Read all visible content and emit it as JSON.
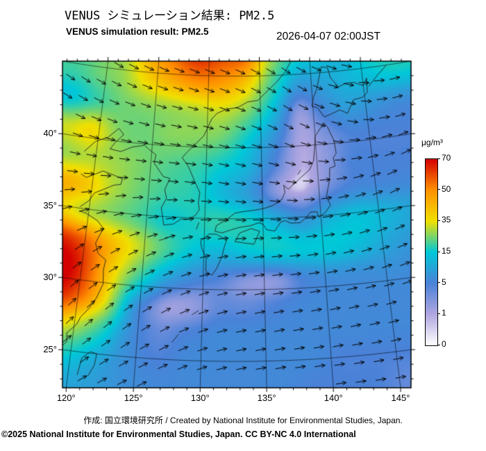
{
  "header": {
    "title_jp": "VENUS シミュレーション結果: PM2.5",
    "title_en": "VENUS simulation result: PM2.5",
    "timestamp": "2026-04-07 02:00JST"
  },
  "footer": {
    "credit": "作成: 国立環境研究所 / Created by National Institute for Environmental Studies, Japan.",
    "copyright": "©2025 National Institute for Environmental Studies, Japan. CC BY-NC 4.0 International"
  },
  "colorbar": {
    "unit": "μg/m³",
    "ticks": [
      "70",
      "50",
      "35",
      "15",
      "5",
      "1",
      "0"
    ]
  },
  "chart_data": {
    "type": "heatmap",
    "title": "VENUS シミュレーション結果: PM2.5",
    "subtitle": "VENUS simulation result: PM2.5",
    "timestamp": "2026-04-07 02:00JST",
    "variable": "PM2.5",
    "unit": "μg/m³",
    "projection": {
      "type": "lambert_conformal_conic",
      "std_parallels": [
        30,
        40
      ],
      "center_lon": 132.75,
      "center_lat": 34.6
    },
    "lon_axis": {
      "tick_values": [
        120,
        125,
        130,
        135,
        140,
        145
      ],
      "tick_labels": [
        "120°",
        "125°",
        "130°",
        "135°",
        "140°",
        "145°"
      ]
    },
    "lat_axis": {
      "tick_values": [
        45,
        40,
        35,
        30,
        25
      ],
      "tick_labels": [
        "45°",
        "40°",
        "35°",
        "30°",
        "25°"
      ]
    },
    "scale": {
      "levels": [
        0,
        1,
        5,
        15,
        35,
        50,
        70
      ],
      "colors": [
        "#ffffff",
        "#b0a6e0",
        "#4a82d8",
        "#00c8d8",
        "#f0e000",
        "#ff9000",
        "#d40000"
      ]
    },
    "grid": {
      "lons": [
        117.0,
        119.38,
        121.77,
        124.15,
        126.54,
        128.92,
        131.31,
        133.69,
        136.08,
        138.46,
        140.85,
        143.23,
        145.62,
        148.0
      ],
      "lats": [
        46.5,
        44.54,
        42.58,
        40.63,
        38.67,
        36.71,
        34.75,
        32.79,
        30.83,
        28.88,
        26.92,
        24.96,
        23.0
      ],
      "values": [
        [
          22,
          25,
          30,
          45,
          55,
          65,
          60,
          55,
          30,
          18,
          15,
          12,
          18,
          20
        ],
        [
          20,
          24,
          28,
          38,
          45,
          50,
          48,
          40,
          22,
          10,
          10,
          12,
          14,
          16
        ],
        [
          15,
          20,
          24,
          26,
          28,
          30,
          32,
          26,
          14,
          3,
          6,
          9,
          8,
          7
        ],
        [
          32,
          36,
          26,
          24,
          26,
          26,
          24,
          16,
          8,
          1.5,
          3,
          5,
          5,
          5
        ],
        [
          28,
          30,
          28,
          25,
          22,
          20,
          16,
          12,
          5,
          1,
          2.5,
          5,
          5,
          5
        ],
        [
          45,
          40,
          30,
          24,
          20,
          18,
          13,
          9,
          3,
          1,
          4,
          6,
          6,
          6
        ],
        [
          40,
          32,
          27,
          22,
          16,
          17,
          19,
          17,
          12,
          8,
          12,
          14,
          12,
          10
        ],
        [
          68,
          60,
          45,
          33,
          22,
          15,
          13,
          15,
          16,
          15,
          15,
          13,
          10,
          8
        ],
        [
          74,
          68,
          45,
          25,
          12,
          7,
          5,
          3,
          3,
          6,
          7,
          7,
          7,
          6
        ],
        [
          70,
          60,
          40,
          12,
          3,
          2,
          4,
          4,
          5,
          6,
          6,
          6,
          6,
          6
        ],
        [
          45,
          35,
          22,
          8,
          4,
          5,
          6,
          6,
          6,
          6,
          6,
          6,
          6,
          6
        ],
        [
          22,
          18,
          12,
          7,
          5,
          6,
          6,
          6,
          6,
          6,
          5,
          5,
          5,
          5
        ],
        [
          14,
          11,
          9,
          7,
          6,
          6,
          6,
          6,
          6,
          5,
          5,
          5,
          4,
          4
        ]
      ]
    },
    "wind": {
      "lons": [
        117.0,
        122.17,
        127.33,
        132.5,
        137.67,
        142.83,
        148.0
      ],
      "lats": [
        46.5,
        41.8,
        37.1,
        32.4,
        27.7,
        23.0
      ],
      "dir_deg_math": [
        [
          -40,
          -30,
          -25,
          -25,
          -35,
          -15,
          10
        ],
        [
          -30,
          -20,
          -12,
          -18,
          -30,
          -15,
          15
        ],
        [
          -5,
          0,
          -5,
          -10,
          -5,
          15,
          30
        ],
        [
          35,
          28,
          20,
          8,
          5,
          15,
          25
        ],
        [
          48,
          40,
          28,
          12,
          10,
          12,
          18
        ],
        [
          32,
          28,
          22,
          12,
          8,
          8,
          12
        ]
      ]
    },
    "coastlines": [
      [
        [
          140.9,
          41.5
        ],
        [
          140.0,
          40.6
        ],
        [
          139.9,
          39.9
        ],
        [
          139.7,
          38.9
        ],
        [
          139.3,
          38.3
        ],
        [
          138.5,
          37.8
        ],
        [
          137.3,
          37.0
        ],
        [
          136.9,
          37.3
        ],
        [
          137.0,
          36.8
        ],
        [
          136.7,
          36.3
        ],
        [
          135.9,
          35.9
        ],
        [
          135.1,
          35.7
        ],
        [
          134.3,
          35.6
        ],
        [
          133.3,
          35.5
        ],
        [
          132.6,
          35.4
        ],
        [
          131.8,
          34.9
        ],
        [
          131.0,
          34.5
        ],
        [
          130.9,
          34.1
        ],
        [
          131.5,
          34.0
        ],
        [
          132.2,
          34.2
        ],
        [
          133.0,
          34.4
        ],
        [
          133.9,
          34.5
        ],
        [
          134.6,
          34.7
        ],
        [
          135.0,
          34.6
        ],
        [
          135.3,
          34.2
        ],
        [
          136.0,
          34.1
        ],
        [
          136.5,
          34.7
        ],
        [
          136.9,
          34.8
        ],
        [
          137.4,
          34.6
        ],
        [
          138.2,
          34.6
        ],
        [
          138.8,
          35.0
        ],
        [
          139.1,
          35.3
        ],
        [
          139.7,
          35.3
        ],
        [
          139.8,
          34.9
        ],
        [
          140.4,
          35.2
        ],
        [
          140.9,
          35.7
        ],
        [
          140.6,
          36.3
        ],
        [
          140.8,
          36.9
        ],
        [
          141.0,
          37.5
        ],
        [
          141.1,
          38.3
        ],
        [
          141.6,
          38.4
        ],
        [
          141.5,
          39.0
        ],
        [
          141.8,
          39.3
        ],
        [
          141.7,
          40.2
        ],
        [
          141.4,
          40.8
        ],
        [
          141.2,
          41.2
        ],
        [
          140.9,
          41.5
        ]
      ],
      [
        [
          140.4,
          42.6
        ],
        [
          141.0,
          41.9
        ],
        [
          141.8,
          42.1
        ],
        [
          142.5,
          42.3
        ],
        [
          143.2,
          42.0
        ],
        [
          143.9,
          42.9
        ],
        [
          144.8,
          43.0
        ],
        [
          145.3,
          43.3
        ],
        [
          145.4,
          44.3
        ],
        [
          145.0,
          43.8
        ],
        [
          144.1,
          44.1
        ],
        [
          143.3,
          44.1
        ],
        [
          142.6,
          43.9
        ],
        [
          141.9,
          44.6
        ],
        [
          141.7,
          45.3
        ],
        [
          141.1,
          45.4
        ],
        [
          140.8,
          44.7
        ],
        [
          140.5,
          43.9
        ],
        [
          140.1,
          43.3
        ],
        [
          139.9,
          42.7
        ],
        [
          140.4,
          42.6
        ]
      ],
      [
        [
          130.4,
          33.9
        ],
        [
          129.7,
          33.4
        ],
        [
          129.8,
          32.9
        ],
        [
          130.2,
          32.2
        ],
        [
          130.2,
          31.3
        ],
        [
          130.7,
          31.0
        ],
        [
          131.1,
          31.5
        ],
        [
          131.5,
          32.3
        ],
        [
          131.7,
          33.0
        ],
        [
          131.9,
          33.5
        ],
        [
          131.0,
          33.9
        ],
        [
          130.4,
          33.9
        ]
      ],
      [
        [
          132.6,
          33.4
        ],
        [
          133.3,
          33.3
        ],
        [
          134.2,
          33.2
        ],
        [
          134.7,
          34.1
        ],
        [
          134.0,
          34.3
        ],
        [
          133.0,
          34.0
        ],
        [
          132.6,
          33.4
        ]
      ],
      [
        [
          124.3,
          39.9
        ],
        [
          124.8,
          39.6
        ],
        [
          125.4,
          39.3
        ],
        [
          125.3,
          38.7
        ],
        [
          126.2,
          37.8
        ],
        [
          126.8,
          37.7
        ],
        [
          126.4,
          36.9
        ],
        [
          126.6,
          36.3
        ],
        [
          126.2,
          35.6
        ],
        [
          126.5,
          34.4
        ],
        [
          127.3,
          34.5
        ],
        [
          128.0,
          34.9
        ],
        [
          128.6,
          34.9
        ],
        [
          129.2,
          35.2
        ],
        [
          129.5,
          35.6
        ],
        [
          129.4,
          36.1
        ],
        [
          129.5,
          36.8
        ],
        [
          129.0,
          37.6
        ],
        [
          128.4,
          38.6
        ],
        [
          127.8,
          39.2
        ],
        [
          128.2,
          39.6
        ],
        [
          128.7,
          40.0
        ],
        [
          129.7,
          40.8
        ],
        [
          130.4,
          42.0
        ],
        [
          130.9,
          42.4
        ],
        [
          131.8,
          42.7
        ],
        [
          132.8,
          42.8
        ],
        [
          133.8,
          43.2
        ],
        [
          134.8,
          43.3
        ],
        [
          135.5,
          43.8
        ],
        [
          136.6,
          44.5
        ],
        [
          137.5,
          45.2
        ],
        [
          138.2,
          46.0
        ]
      ],
      [
        [
          119.0,
          25.0
        ],
        [
          119.6,
          25.6
        ],
        [
          119.5,
          26.2
        ],
        [
          120.2,
          26.9
        ],
        [
          120.4,
          27.4
        ],
        [
          121.0,
          28.1
        ],
        [
          121.5,
          28.9
        ],
        [
          121.9,
          29.9
        ],
        [
          121.8,
          30.9
        ],
        [
          121.9,
          31.6
        ],
        [
          121.2,
          32.0
        ],
        [
          120.9,
          32.7
        ],
        [
          121.4,
          33.8
        ],
        [
          120.8,
          34.3
        ],
        [
          119.8,
          34.7
        ],
        [
          119.2,
          34.8
        ]
      ],
      [
        [
          119.2,
          35.1
        ],
        [
          119.9,
          35.6
        ],
        [
          120.3,
          36.2
        ],
        [
          121.0,
          36.5
        ],
        [
          121.9,
          36.9
        ],
        [
          122.5,
          37.0
        ],
        [
          122.6,
          37.4
        ],
        [
          121.8,
          37.6
        ],
        [
          120.8,
          37.8
        ],
        [
          120.1,
          37.5
        ],
        [
          119.4,
          37.2
        ],
        [
          118.9,
          37.4
        ]
      ],
      [
        [
          118.9,
          39.0
        ],
        [
          119.8,
          39.8
        ],
        [
          120.9,
          40.2
        ],
        [
          121.8,
          40.9
        ],
        [
          122.3,
          40.5
        ],
        [
          121.6,
          39.9
        ],
        [
          121.2,
          39.4
        ],
        [
          122.2,
          39.3
        ],
        [
          123.2,
          39.7
        ],
        [
          124.3,
          39.9
        ]
      ],
      [
        [
          120.7,
          23.4
        ],
        [
          120.9,
          24.6
        ],
        [
          121.5,
          25.1
        ],
        [
          122.0,
          25.0
        ],
        [
          121.9,
          24.2
        ],
        [
          121.5,
          23.4
        ]
      ],
      [
        [
          141.9,
          45.8
        ],
        [
          142.1,
          46.3
        ],
        [
          142.5,
          46.5
        ]
      ],
      [
        [
          145.5,
          43.7
        ],
        [
          146.5,
          44.4
        ],
        [
          147.5,
          45.0
        ]
      ],
      [
        [
          138.2,
          38.0
        ],
        [
          138.5,
          38.3
        ]
      ],
      [
        [
          129.3,
          34.2
        ],
        [
          129.5,
          34.7
        ]
      ],
      [
        [
          126.2,
          33.3
        ],
        [
          126.9,
          33.5
        ]
      ],
      [
        [
          129.2,
          28.2
        ],
        [
          129.7,
          28.5
        ]
      ],
      [
        [
          127.7,
          26.2
        ],
        [
          128.2,
          26.8
        ]
      ]
    ]
  }
}
